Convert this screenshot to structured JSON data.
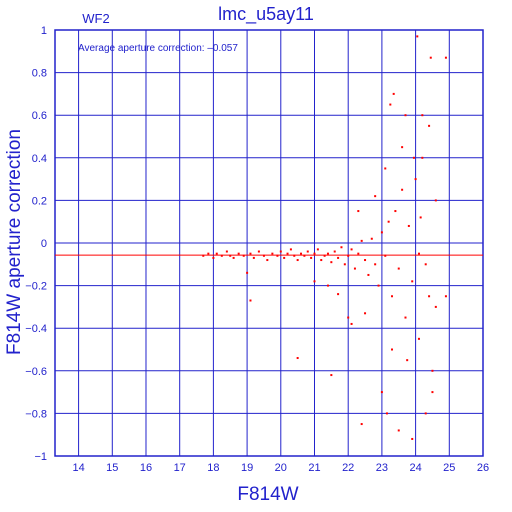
{
  "chart_data": {
    "type": "scatter",
    "title": "lmc_u5ay11",
    "chip": "WF2",
    "annotation": "Average aperture correction:  –0.057",
    "xlabel": "F814W",
    "ylabel": "F814W aperture correction",
    "xlim": [
      13.3,
      26
    ],
    "ylim": [
      -1,
      1
    ],
    "x_ticks": [
      14,
      15,
      16,
      17,
      18,
      19,
      20,
      21,
      22,
      23,
      24,
      25,
      26
    ],
    "y_ticks": [
      -1,
      -0.8,
      -0.6,
      -0.4,
      -0.2,
      0,
      0.2,
      0.4,
      0.6,
      0.8,
      1
    ],
    "y_tick_labels": [
      "−1",
      "−0.8",
      "−0.6",
      "−0.4",
      "−0.2",
      "0",
      "0.2",
      "0.4",
      "0.6",
      "0.8",
      "1"
    ],
    "grid": true,
    "reference_line": {
      "y": -0.057,
      "color": "#ff0000"
    },
    "colors": {
      "axes": "#2222cc",
      "points": "#ff0000"
    },
    "series": [
      {
        "values": [
          [
            17.7,
            -0.06
          ],
          [
            17.85,
            -0.05
          ],
          [
            18.0,
            -0.07
          ],
          [
            18.1,
            -0.05
          ],
          [
            18.25,
            -0.06
          ],
          [
            18.4,
            -0.04
          ],
          [
            18.5,
            -0.06
          ],
          [
            18.6,
            -0.07
          ],
          [
            18.75,
            -0.05
          ],
          [
            18.9,
            -0.06
          ],
          [
            19.1,
            -0.05
          ],
          [
            19.2,
            -0.07
          ],
          [
            19.35,
            -0.04
          ],
          [
            19.5,
            -0.06
          ],
          [
            19.6,
            -0.08
          ],
          [
            19.75,
            -0.05
          ],
          [
            19.9,
            -0.06
          ],
          [
            20.0,
            -0.04
          ],
          [
            20.1,
            -0.07
          ],
          [
            20.2,
            -0.05
          ],
          [
            20.3,
            -0.03
          ],
          [
            20.4,
            -0.06
          ],
          [
            20.5,
            -0.08
          ],
          [
            20.6,
            -0.05
          ],
          [
            20.7,
            -0.06
          ],
          [
            20.8,
            -0.04
          ],
          [
            20.9,
            -0.07
          ],
          [
            21.0,
            -0.05
          ],
          [
            21.1,
            -0.03
          ],
          [
            21.2,
            -0.08
          ],
          [
            21.3,
            -0.06
          ],
          [
            21.4,
            -0.05
          ],
          [
            21.5,
            -0.09
          ],
          [
            21.6,
            -0.04
          ],
          [
            21.7,
            -0.07
          ],
          [
            21.8,
            -0.02
          ],
          [
            21.9,
            -0.1
          ],
          [
            22.0,
            -0.06
          ],
          [
            22.1,
            -0.03
          ],
          [
            22.2,
            -0.12
          ],
          [
            22.3,
            -0.05
          ],
          [
            22.4,
            0.01
          ],
          [
            22.5,
            -0.08
          ],
          [
            22.6,
            -0.15
          ],
          [
            22.7,
            0.02
          ],
          [
            22.8,
            -0.1
          ],
          [
            22.9,
            -0.2
          ],
          [
            23.0,
            0.05
          ],
          [
            23.1,
            -0.06
          ],
          [
            23.2,
            0.1
          ],
          [
            23.3,
            -0.25
          ],
          [
            23.4,
            0.15
          ],
          [
            23.5,
            -0.12
          ],
          [
            23.6,
            0.25
          ],
          [
            23.7,
            -0.35
          ],
          [
            23.8,
            0.08
          ],
          [
            23.9,
            -0.18
          ],
          [
            24.0,
            0.3
          ],
          [
            24.1,
            -0.45
          ],
          [
            24.2,
            0.4
          ],
          [
            24.3,
            -0.1
          ],
          [
            24.4,
            0.55
          ],
          [
            24.5,
            -0.6
          ],
          [
            24.6,
            0.2
          ],
          [
            24.4,
            -0.25
          ],
          [
            24.2,
            0.6
          ],
          [
            24.3,
            -0.8
          ],
          [
            24.45,
            0.87
          ],
          [
            24.05,
            0.97
          ],
          [
            24.5,
            -0.7
          ],
          [
            23.9,
            -0.92
          ],
          [
            23.5,
            -0.88
          ],
          [
            23.7,
            0.6
          ],
          [
            23.95,
            0.4
          ],
          [
            23.3,
            -0.5
          ],
          [
            23.1,
            0.35
          ],
          [
            23.0,
            -0.7
          ],
          [
            22.8,
            0.22
          ],
          [
            22.5,
            -0.33
          ],
          [
            22.3,
            0.15
          ],
          [
            21.7,
            -0.24
          ],
          [
            21.4,
            -0.2
          ],
          [
            21.0,
            -0.18
          ],
          [
            20.5,
            -0.54
          ],
          [
            19.1,
            -0.27
          ],
          [
            19.0,
            -0.14
          ],
          [
            21.5,
            -0.62
          ],
          [
            22.1,
            -0.38
          ],
          [
            22.0,
            -0.35
          ],
          [
            22.4,
            -0.85
          ],
          [
            23.25,
            0.65
          ],
          [
            23.35,
            0.7
          ],
          [
            24.9,
            0.87
          ],
          [
            24.6,
            -0.3
          ],
          [
            24.9,
            -0.25
          ],
          [
            24.1,
            -0.05
          ],
          [
            24.15,
            0.12
          ],
          [
            23.75,
            -0.55
          ],
          [
            23.6,
            0.45
          ],
          [
            23.15,
            -0.8
          ]
        ]
      }
    ]
  }
}
